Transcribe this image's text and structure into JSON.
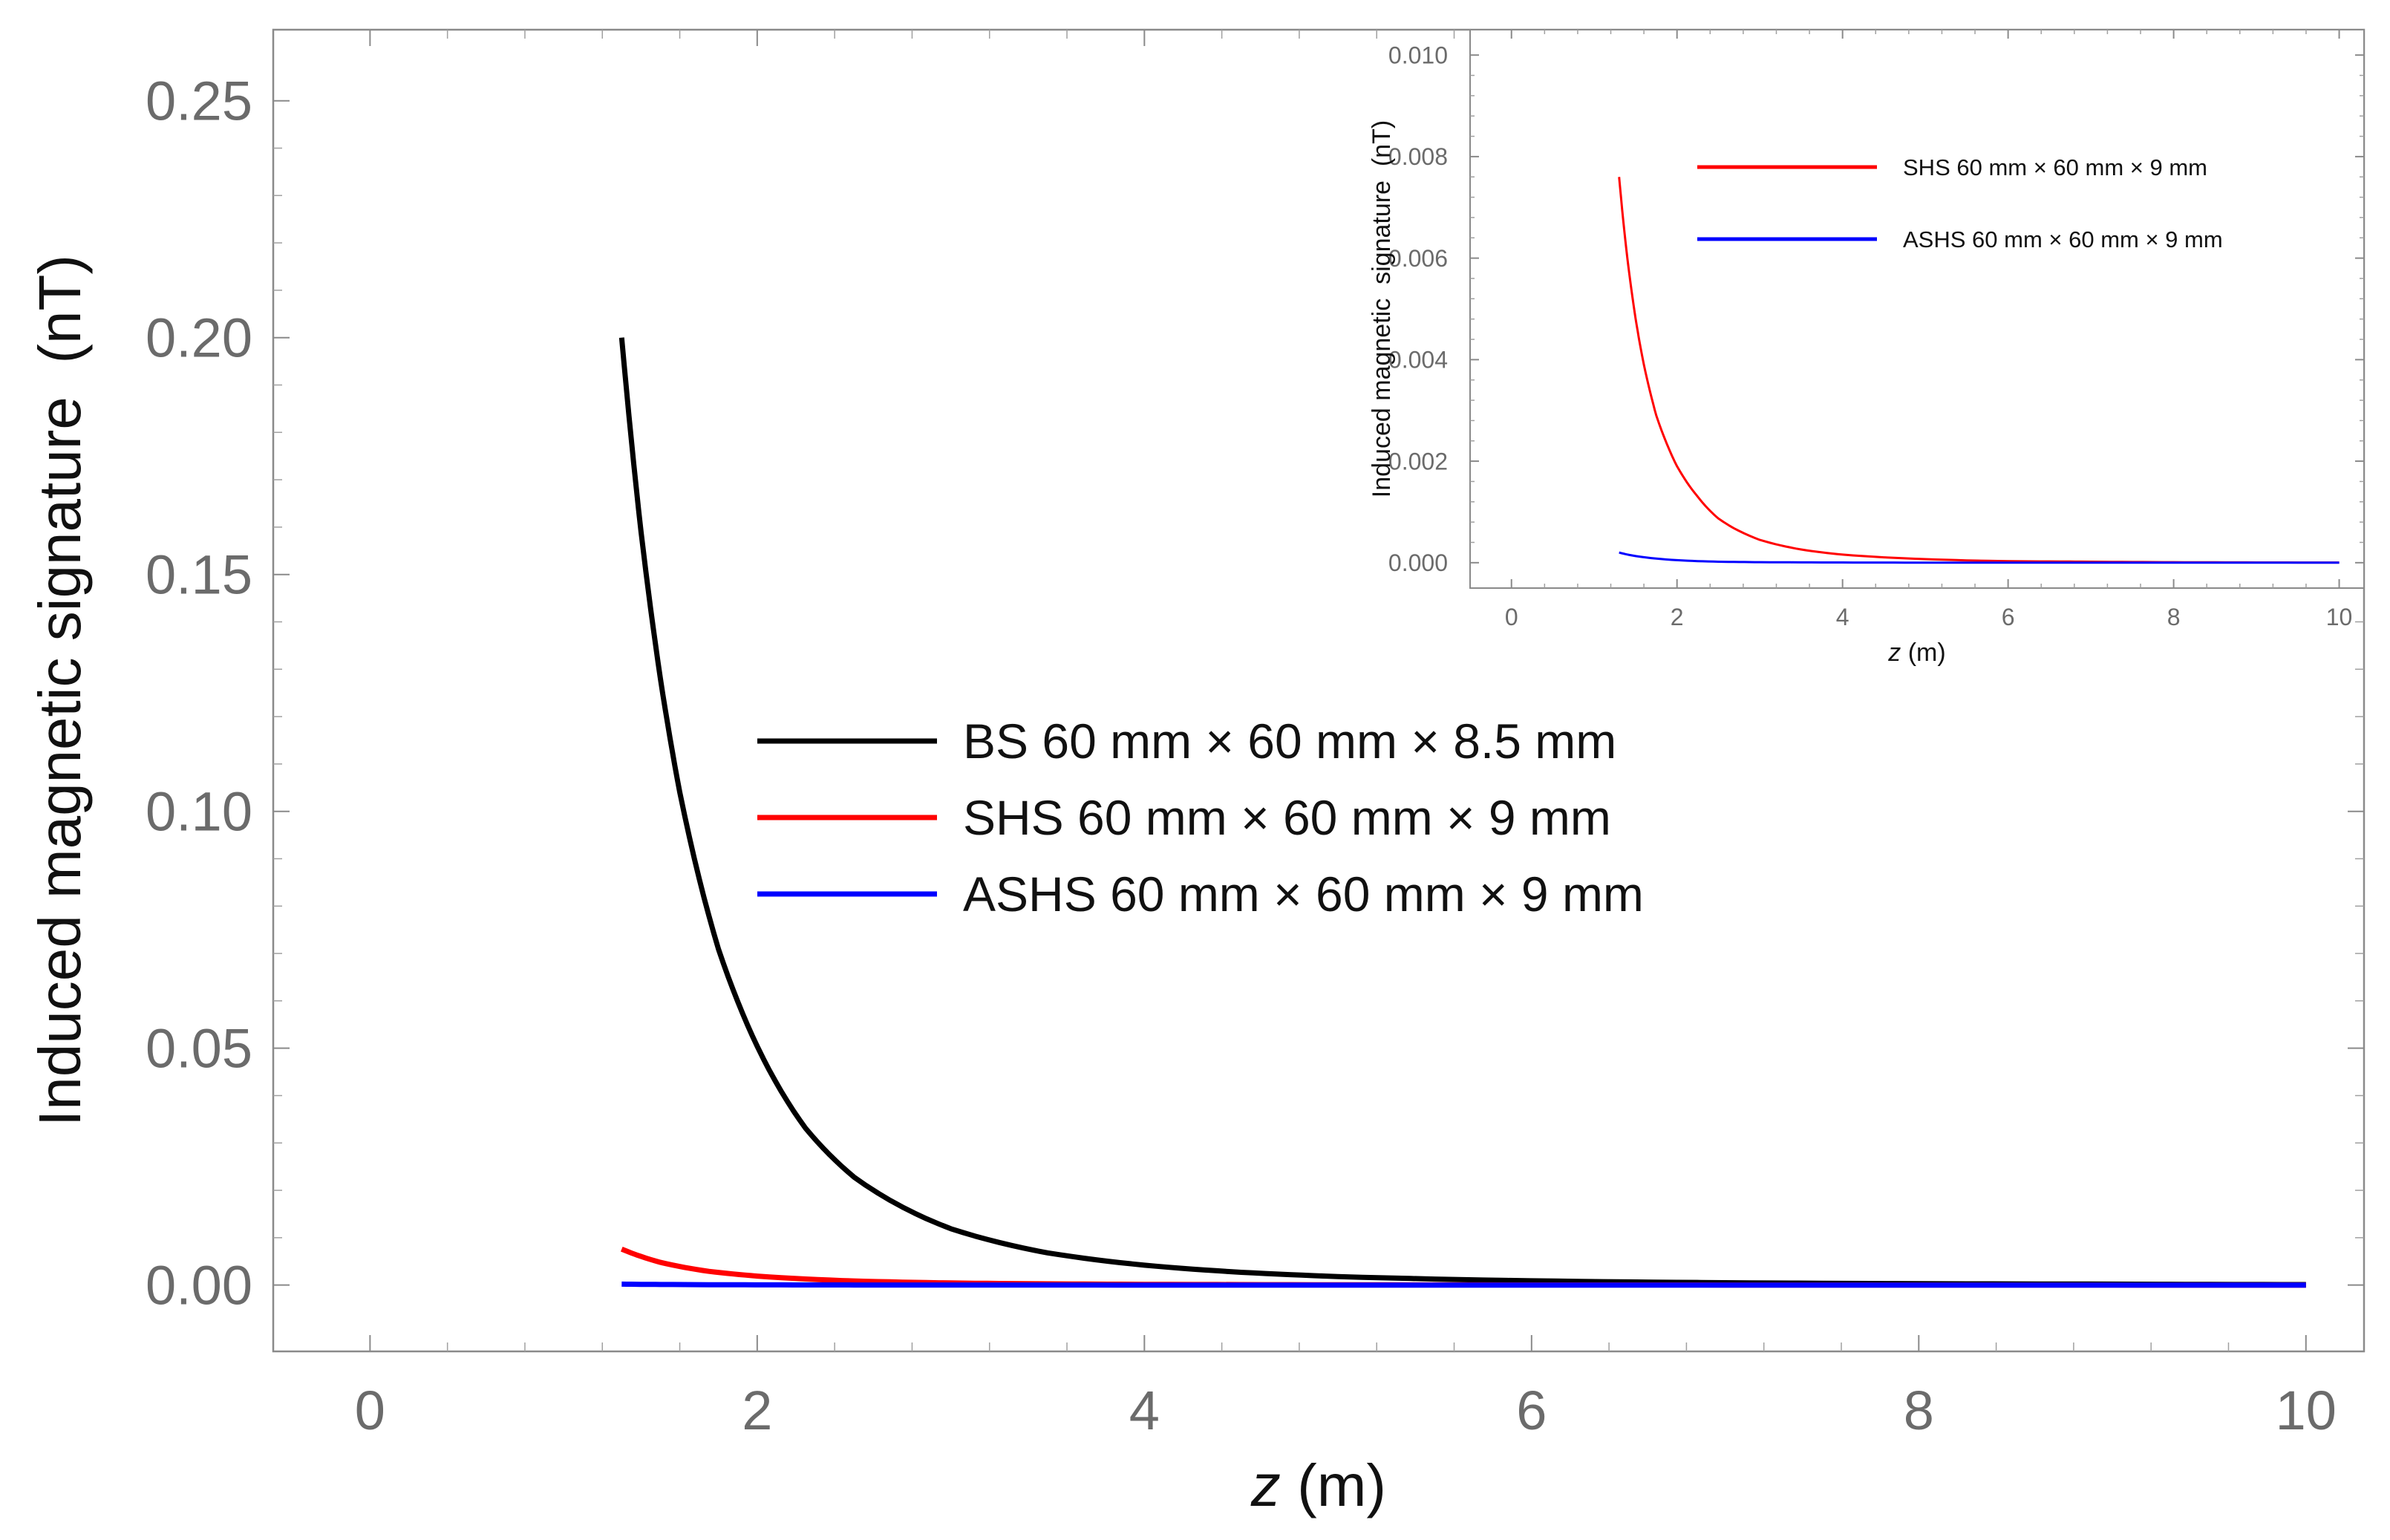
{
  "chart_data": [
    {
      "id": "main",
      "type": "line",
      "title": "",
      "xlabel_var": "z",
      "xlabel_unit": " (m)",
      "ylabel": "Induced magnetic signature  (nT)",
      "xlim": [
        -0.5,
        10.3
      ],
      "ylim": [
        -0.014,
        0.265
      ],
      "xticks": [
        0,
        2,
        4,
        6,
        8,
        10
      ],
      "xtick_labels": [
        "0",
        "2",
        "4",
        "6",
        "8",
        "10"
      ],
      "yticks": [
        0,
        0.05,
        0.1,
        0.15,
        0.2,
        0.25
      ],
      "ytick_labels": [
        "0.00",
        "0.05",
        "0.10",
        "0.15",
        "0.20",
        "0.25"
      ],
      "grid": false,
      "legend_position": "center",
      "series": [
        {
          "name": "BS 60 mm × 60 mm × 8.5 mm",
          "color": "#000000",
          "x": [
            1.3,
            1.4,
            1.5,
            1.6,
            1.8,
            2.0,
            2.25,
            2.5,
            3.0,
            3.5,
            4.0,
            4.5,
            5.0,
            6.0,
            7.0,
            8.0,
            9.0,
            10.0
          ],
          "y": [
            0.2,
            0.159,
            0.128,
            0.104,
            0.0709,
            0.0504,
            0.0331,
            0.0228,
            0.0119,
            0.0068,
            0.0042,
            0.0027,
            0.0018,
            0.0009,
            0.0005,
            0.0003,
            0.0002,
            0.0001
          ]
        },
        {
          "name": "SHS 60 mm × 60 mm × 9 mm",
          "color": "#ff0000",
          "x": [
            1.3,
            1.5,
            1.75,
            2.0,
            2.5,
            3.0,
            3.5,
            4.0,
            5.0,
            6.0,
            7.0,
            8.0,
            9.0,
            10.0
          ],
          "y": [
            0.0076,
            0.0048,
            0.0029,
            0.0019,
            0.00087,
            0.00045,
            0.00026,
            0.00016,
            7e-05,
            3e-05,
            2e-05,
            1e-05,
            5e-06,
            3e-06
          ]
        },
        {
          "name": "ASHS 60 mm × 60 mm × 9 mm",
          "color": "#0000ff",
          "x": [
            1.3,
            1.5,
            2.0,
            2.5,
            3.0,
            4.0,
            5.0,
            6.0,
            8.0,
            10.0
          ],
          "y": [
            0.0002,
            0.00013,
            5e-05,
            2e-05,
            1e-05,
            4e-06,
            2e-06,
            1e-06,
            5e-07,
            2e-07
          ]
        }
      ]
    },
    {
      "id": "inset",
      "type": "line",
      "title": "",
      "xlabel_var": "z",
      "xlabel_unit": " (m)",
      "ylabel": "Induced magnetic  signature  (nT)",
      "xlim": [
        -0.5,
        10.3
      ],
      "ylim": [
        -0.0005,
        0.0105
      ],
      "xticks": [
        0,
        2,
        4,
        6,
        8,
        10
      ],
      "xtick_labels": [
        "0",
        "2",
        "4",
        "6",
        "8",
        "10"
      ],
      "yticks": [
        0,
        0.002,
        0.004,
        0.006,
        0.008,
        0.01
      ],
      "ytick_labels": [
        "0.000",
        "0.002",
        "0.004",
        "0.006",
        "0.008",
        "0.010"
      ],
      "grid": false,
      "legend_position": "top-right",
      "series": [
        {
          "name": "SHS 60 mm × 60 mm × 9 mm",
          "color": "#ff0000",
          "x": [
            1.3,
            1.4,
            1.5,
            1.6,
            1.75,
            2.0,
            2.25,
            2.5,
            3.0,
            3.5,
            4.0,
            5.0,
            6.0,
            7.0,
            8.0,
            9.0,
            10.0
          ],
          "y": [
            0.0076,
            0.006,
            0.0048,
            0.0039,
            0.0029,
            0.0019,
            0.0013,
            0.00087,
            0.00045,
            0.00026,
            0.00016,
            7e-05,
            3e-05,
            2e-05,
            1e-05,
            5e-06,
            3e-06
          ]
        },
        {
          "name": "ASHS 60 mm × 60 mm × 9 mm",
          "color": "#0000ff",
          "x": [
            1.3,
            1.5,
            2.0,
            2.5,
            3.0,
            4.0,
            5.0,
            6.0,
            8.0,
            10.0
          ],
          "y": [
            0.0002,
            0.00013,
            5e-05,
            2e-05,
            1e-05,
            4e-06,
            2e-06,
            1e-06,
            5e-07,
            2e-07
          ]
        }
      ]
    }
  ]
}
